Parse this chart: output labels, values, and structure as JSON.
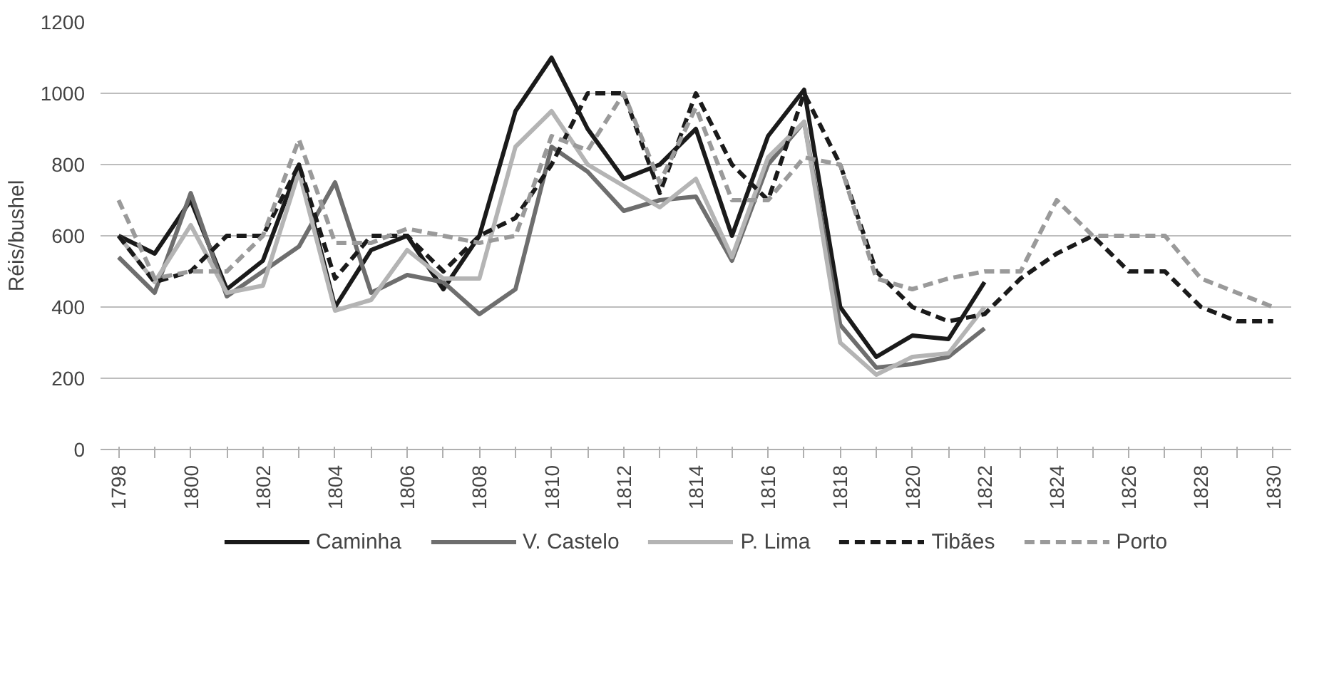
{
  "chart_data": {
    "type": "line",
    "ylabel": "Réis/bushel",
    "categories": [
      "1798",
      null,
      "1800",
      null,
      "1802",
      null,
      "1804",
      null,
      "1806",
      null,
      "1808",
      null,
      "1810",
      null,
      "1812",
      null,
      "1814",
      null,
      "1816",
      null,
      "1818",
      null,
      "1820",
      null,
      "1822",
      null,
      "1824",
      null,
      "1826",
      null,
      "1828",
      null,
      "1830"
    ],
    "ylim": [
      0,
      1200
    ],
    "yticks": [
      0,
      200,
      400,
      600,
      800,
      1000,
      1200
    ],
    "grid": "y",
    "legend": "bottom",
    "marker": "none",
    "series": [
      {
        "name": "Caminha",
        "color": "#1a1a1a",
        "line_style": "solid",
        "values": [
          600,
          550,
          700,
          450,
          530,
          800,
          400,
          560,
          600,
          450,
          600,
          950,
          1100,
          900,
          760,
          800,
          900,
          600,
          880,
          1010,
          400,
          260,
          320,
          310,
          470,
          null,
          null,
          null,
          null,
          null,
          null,
          null,
          null
        ]
      },
      {
        "name": "V. Castelo",
        "color": "#6e6e6e",
        "line_style": "solid",
        "values": [
          540,
          440,
          720,
          430,
          500,
          570,
          750,
          440,
          490,
          470,
          380,
          450,
          850,
          780,
          670,
          700,
          710,
          530,
          800,
          920,
          350,
          230,
          240,
          260,
          340,
          null,
          null,
          null,
          null,
          null,
          null,
          null,
          null
        ]
      },
      {
        "name": "P. Lima",
        "color": "#b4b4b4",
        "line_style": "solid",
        "values": [
          600,
          470,
          630,
          440,
          460,
          780,
          390,
          420,
          560,
          480,
          480,
          850,
          950,
          800,
          740,
          680,
          760,
          540,
          820,
          920,
          300,
          210,
          260,
          270,
          400,
          null,
          null,
          null,
          null,
          null,
          null,
          null,
          null
        ]
      },
      {
        "name": "Tibães",
        "color": "#1a1a1a",
        "line_style": "dashed",
        "values": [
          600,
          470,
          500,
          600,
          600,
          800,
          480,
          600,
          600,
          500,
          600,
          650,
          800,
          1000,
          1000,
          720,
          1000,
          800,
          700,
          1000,
          800,
          500,
          400,
          360,
          380,
          480,
          550,
          600,
          500,
          500,
          400,
          360,
          360
        ]
      },
      {
        "name": "Porto",
        "color": "#9a9a9a",
        "line_style": "dashed",
        "values": [
          700,
          480,
          500,
          500,
          600,
          870,
          580,
          580,
          620,
          600,
          580,
          600,
          880,
          840,
          1000,
          750,
          960,
          700,
          700,
          820,
          800,
          480,
          450,
          480,
          500,
          500,
          700,
          600,
          600,
          600,
          480,
          440,
          400
        ]
      }
    ]
  }
}
